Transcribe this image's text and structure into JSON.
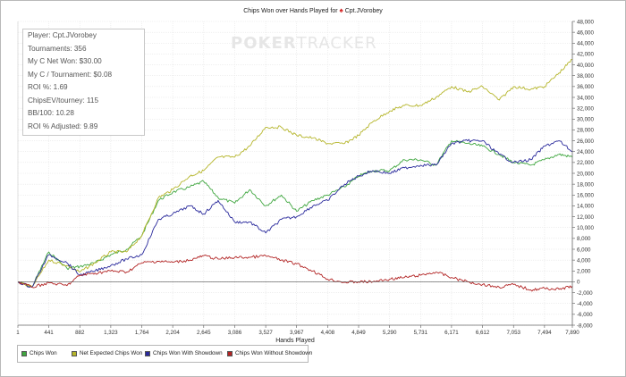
{
  "title": {
    "text": "Chips Won over Hands Played for",
    "player": "Cpt.JVorobey"
  },
  "watermark": {
    "part1": "POKER",
    "part2": "TRACKER"
  },
  "stats": [
    "Player: Cpt.JVorobey",
    "Tournaments: 356",
    "My C Net Won: $30.00",
    "My C / Tournament: $0.08",
    "ROI %: 1.69",
    "ChipsEV/tourney: 115",
    "BB/100: 10.28",
    "ROI % Adjusted: 9.89"
  ],
  "legend": [
    {
      "label": "Chips Won",
      "color": "#3fa63f"
    },
    {
      "label": "Net Expected Chips Won",
      "color": "#b5b52a"
    },
    {
      "label": "Chips Won With Showdown",
      "color": "#2a2a9c"
    },
    {
      "label": "Chips Won Without Showdown",
      "color": "#b22424"
    }
  ],
  "chart_data": {
    "type": "line",
    "xlabel": "Hands Played",
    "xlim": [
      1,
      7890
    ],
    "ylim": [
      -8000,
      48000
    ],
    "x_ticks": [
      "1",
      "441",
      "882",
      "1,323",
      "1,764",
      "2,204",
      "2,645",
      "3,086",
      "3,527",
      "3,967",
      "4,408",
      "4,849",
      "5,290",
      "5,731",
      "6,171",
      "6,612",
      "7,053",
      "7,494",
      "7,890"
    ],
    "y_ticks": [
      "-8,000",
      "-6,000",
      "-4,000",
      "-2,000",
      "0",
      "2,000",
      "4,000",
      "6,000",
      "8,000",
      "10,000",
      "12,000",
      "14,000",
      "16,000",
      "18,000",
      "20,000",
      "22,000",
      "24,000",
      "26,000",
      "28,000",
      "30,000",
      "32,000",
      "34,000",
      "36,000",
      "38,000",
      "40,000",
      "42,000",
      "44,000",
      "46,000",
      "48,000"
    ],
    "grid": true,
    "series": [
      {
        "name": "Chips Won",
        "color": "#3fa63f",
        "x": [
          1,
          200,
          441,
          700,
          882,
          1100,
          1323,
          1550,
          1764,
          2000,
          2204,
          2450,
          2645,
          2850,
          3086,
          3300,
          3527,
          3750,
          3967,
          4200,
          4408,
          4650,
          4849,
          5050,
          5290,
          5500,
          5731,
          5950,
          6171,
          6400,
          6612,
          6850,
          7053,
          7300,
          7494,
          7700,
          7890
        ],
        "y": [
          0,
          -1000,
          5500,
          2500,
          2800,
          3500,
          5000,
          6000,
          8500,
          15000,
          16500,
          17500,
          18500,
          15500,
          14500,
          17000,
          14000,
          16000,
          13000,
          15000,
          16000,
          17500,
          19500,
          20500,
          20500,
          22500,
          22500,
          21500,
          26000,
          25500,
          25000,
          23500,
          22000,
          21500,
          22500,
          23500,
          23000
        ]
      },
      {
        "name": "Net Expected Chips Won",
        "color": "#b5b52a",
        "x": [
          1,
          200,
          441,
          700,
          882,
          1100,
          1323,
          1550,
          1764,
          2000,
          2204,
          2450,
          2645,
          2850,
          3086,
          3300,
          3527,
          3750,
          3967,
          4200,
          4408,
          4650,
          4849,
          5050,
          5290,
          5500,
          5731,
          5950,
          6171,
          6400,
          6612,
          6850,
          7053,
          7300,
          7494,
          7700,
          7890
        ],
        "y": [
          0,
          -1000,
          4000,
          3000,
          1800,
          3500,
          5500,
          5500,
          8500,
          15500,
          17000,
          19500,
          20500,
          23000,
          23000,
          25000,
          28500,
          28500,
          27000,
          26500,
          25500,
          25500,
          27000,
          29500,
          31500,
          32500,
          32500,
          34000,
          36000,
          35000,
          36000,
          33500,
          36000,
          35500,
          36000,
          38500,
          41000
        ]
      },
      {
        "name": "Chips Won With Showdown",
        "color": "#2a2a9c",
        "x": [
          1,
          200,
          441,
          700,
          882,
          1100,
          1323,
          1550,
          1764,
          2000,
          2204,
          2450,
          2645,
          2850,
          3086,
          3300,
          3527,
          3750,
          3967,
          4200,
          4408,
          4650,
          4849,
          5050,
          5290,
          5500,
          5731,
          5950,
          6171,
          6400,
          6612,
          6850,
          7053,
          7300,
          7494,
          7700,
          7890
        ],
        "y": [
          0,
          -1000,
          5000,
          3500,
          1200,
          2000,
          3000,
          4200,
          5000,
          11500,
          12500,
          14000,
          12500,
          15000,
          11000,
          11000,
          9000,
          11500,
          12000,
          14000,
          15000,
          18000,
          19500,
          20500,
          20000,
          21000,
          21500,
          21500,
          25500,
          26000,
          26000,
          23500,
          22000,
          22500,
          25000,
          26000,
          24000
        ]
      },
      {
        "name": "Chips Won Without Showdown",
        "color": "#b22424",
        "x": [
          1,
          200,
          441,
          700,
          882,
          1100,
          1323,
          1550,
          1764,
          2000,
          2204,
          2450,
          2645,
          2850,
          3086,
          3300,
          3527,
          3750,
          3967,
          4200,
          4408,
          4650,
          4849,
          5050,
          5290,
          5500,
          5731,
          5950,
          6171,
          6400,
          6612,
          6850,
          7053,
          7300,
          7494,
          7700,
          7890
        ],
        "y": [
          0,
          -1000,
          -200,
          -700,
          1200,
          1600,
          2000,
          1800,
          3500,
          3800,
          3600,
          4000,
          4800,
          4200,
          4500,
          4500,
          4800,
          4000,
          3300,
          2000,
          500,
          -100,
          0,
          0,
          500,
          800,
          1200,
          1800,
          800,
          0,
          -500,
          -1000,
          -500,
          -1500,
          -1200,
          -1400,
          -800
        ]
      }
    ]
  }
}
